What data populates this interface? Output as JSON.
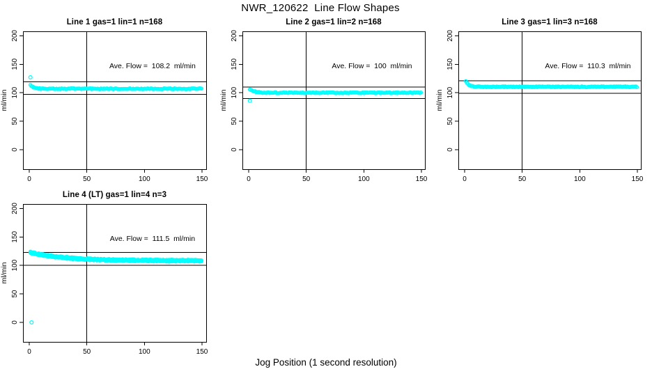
{
  "figure": {
    "title": "NWR_120622  Line Flow Shapes",
    "xlabel": "Jog Position (1 second resolution)",
    "background": "#FFFFFF",
    "point_color": "#00FFFF",
    "line_color": "#000000"
  },
  "axes": {
    "xlim": [
      0,
      150
    ],
    "xticks": [
      0,
      50,
      100,
      150
    ],
    "yticks": [
      0,
      50,
      100,
      150,
      200
    ],
    "ylabel": "ml/min",
    "grid": false,
    "legend": "none"
  },
  "chart_data": [
    {
      "type": "scatter",
      "title": "Line 1 gas=1 lin=1 n=168",
      "ave_flow_ml_min": 108.2,
      "ave_flow_label": "Ave. Flow =  108.2  ml/min",
      "reference_lines": {
        "vertical_x": 50,
        "horizontal_upper": 119.0,
        "horizontal_lower": 97.4
      },
      "series_model": {
        "steady_ml_min": 107,
        "start_extra": 9,
        "decay_tau_s": 3,
        "x_start": 1,
        "x_end": 150,
        "n_shown": 168,
        "runs": 1,
        "seed": 1
      },
      "outlier_points": [
        {
          "x": 1,
          "y": 127
        }
      ]
    },
    {
      "type": "scatter",
      "title": "Line 2 gas=1 lin=2 n=168",
      "ave_flow_ml_min": 100,
      "ave_flow_label": "Ave. Flow =  100  ml/min",
      "reference_lines": {
        "vertical_x": 50,
        "horizontal_upper": 110.0,
        "horizontal_lower": 90.0
      },
      "series_model": {
        "steady_ml_min": 100,
        "start_extra": 8,
        "decay_tau_s": 4,
        "x_start": 1,
        "x_end": 150,
        "n_shown": 168,
        "runs": 1,
        "seed": 2
      },
      "outlier_points": [
        {
          "x": 1,
          "y": 86
        }
      ]
    },
    {
      "type": "scatter",
      "title": "Line 3 gas=1 lin=3 n=168",
      "ave_flow_ml_min": 110.3,
      "ave_flow_label": "Ave. Flow =  110.3  ml/min",
      "reference_lines": {
        "vertical_x": 50,
        "horizontal_upper": 121.3,
        "horizontal_lower": 99.3
      },
      "series_model": {
        "steady_ml_min": 110.5,
        "start_extra": 15,
        "decay_tau_s": 2.5,
        "x_start": 1,
        "x_end": 150,
        "n_shown": 168,
        "runs": 1,
        "seed": 3
      },
      "outlier_points": []
    },
    {
      "type": "scatter",
      "title": "Line 4 (LT) gas=1 lin=4 n=3",
      "ave_flow_ml_min": 111.5,
      "ave_flow_label": "Ave. Flow =  111.5  ml/min",
      "reference_lines": {
        "vertical_x": 50,
        "horizontal_upper": 122.7,
        "horizontal_lower": 100.4
      },
      "series_model": {
        "steady_ml_min": 108.3,
        "start_extra": 15,
        "decay_tau_s": 30,
        "x_start": 1,
        "x_end": 150,
        "n_shown": 150,
        "runs": 3,
        "seed": 4
      },
      "outlier_points": [
        {
          "x": 2,
          "y": 0
        }
      ]
    }
  ]
}
